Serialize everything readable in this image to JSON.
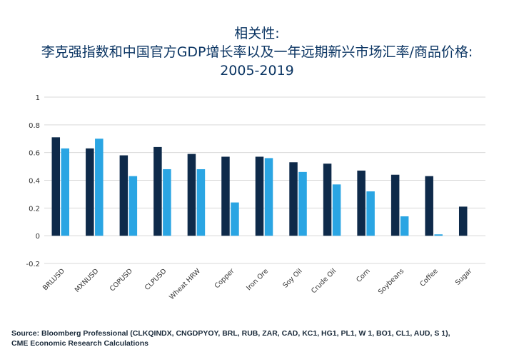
{
  "title": {
    "line1": "相关性:",
    "line2": "李克强指数和中国官方GDP增长率以及一年远期新兴市场汇率/商品价格:",
    "line3": "2005-2019"
  },
  "source": {
    "line1": "Source: Bloomberg Professional (CLKQINDX, CNGDPYOY, BRL, RUB, ZAR, CAD, KC1, HG1, PL1, W 1, BO1, CL1, AUD, S 1),",
    "line2": "CME Economic Research Calculations"
  },
  "colors": {
    "series1": "#0e2a4a",
    "series2": "#2aa5e3",
    "grid": "#d9d9d9",
    "text": "#333333"
  },
  "chart_data": {
    "type": "bar",
    "categories": [
      "BRLUSD",
      "MXNUSD",
      "COPUSD",
      "CLPUSD",
      "Wheat HRW",
      "Copper",
      "Iron Ore",
      "Soy Oil",
      "Crude Oil",
      "Corn",
      "Soybeans",
      "Coffee",
      "Sugar"
    ],
    "series": [
      {
        "values": [
          0.71,
          0.63,
          0.58,
          0.64,
          0.59,
          0.57,
          0.57,
          0.53,
          0.52,
          0.47,
          0.44,
          0.43,
          0.21
        ]
      },
      {
        "values": [
          0.63,
          0.7,
          0.43,
          0.48,
          0.48,
          0.24,
          0.56,
          0.46,
          0.37,
          0.32,
          0.14,
          0.01,
          null
        ]
      }
    ],
    "ylim": [
      -0.2,
      1
    ],
    "yticks": [
      "-0.2",
      "0",
      "0.2",
      "0.4",
      "0.6",
      "0.8",
      "1"
    ],
    "grid": true
  }
}
